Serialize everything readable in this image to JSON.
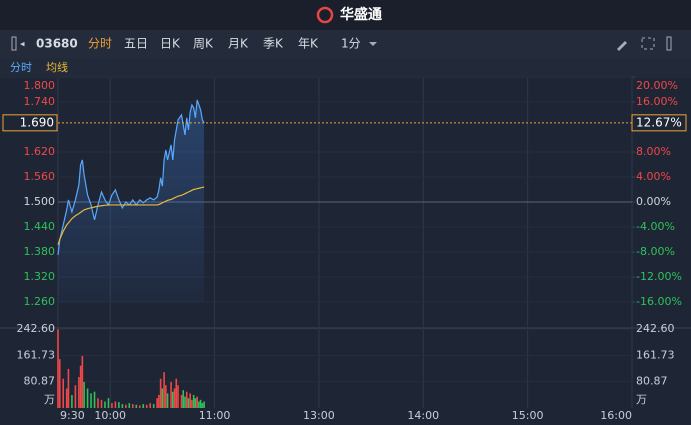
{
  "header": {
    "title": "华盛通"
  },
  "toolbar": {
    "code": "03680",
    "tabs": [
      "分时",
      "五日",
      "日K",
      "周K",
      "月K",
      "季K",
      "年K",
      "1分"
    ]
  },
  "chart_data": [
    {
      "type": "line",
      "x": [
        0,
        1,
        3,
        5,
        6,
        8,
        10,
        12,
        13,
        14,
        15,
        17,
        19,
        21,
        23,
        25,
        27,
        29,
        31,
        33,
        35,
        37,
        39,
        41,
        43,
        45,
        47,
        49,
        51,
        53,
        55,
        57,
        58,
        59,
        60,
        61,
        62,
        63,
        65,
        66,
        67,
        68,
        69,
        71,
        72,
        73,
        74,
        75,
        76,
        77,
        78,
        79,
        80,
        81,
        82,
        83,
        84
      ],
      "xlim": [
        0,
        330
      ],
      "xticks": [
        {
          "value": 0,
          "label": "9:30"
        },
        {
          "value": 30,
          "label": "10:00"
        },
        {
          "value": 90,
          "label": "11:00"
        },
        {
          "value": 150,
          "label": "13:00"
        },
        {
          "value": 210,
          "label": "14:00"
        },
        {
          "value": 270,
          "label": "15:00"
        },
        {
          "value": 330,
          "label": "16:00"
        }
      ],
      "ylim": [
        1.26,
        1.8
      ],
      "yticks": [
        {
          "value": 1.8,
          "label": "1.800"
        },
        {
          "value": 1.74,
          "label": "1.740"
        },
        {
          "value": 1.62,
          "label": "1.620"
        },
        {
          "value": 1.56,
          "label": "1.560"
        },
        {
          "value": 1.5,
          "label": "1.500"
        },
        {
          "value": 1.44,
          "label": "1.440"
        },
        {
          "value": 1.38,
          "label": "1.380"
        },
        {
          "value": 1.32,
          "label": "1.320"
        },
        {
          "value": 1.26,
          "label": "1.260"
        }
      ],
      "y2lim": [
        -16,
        20
      ],
      "y2ticks": [
        {
          "value": 20,
          "label": "20.00%"
        },
        {
          "value": 16,
          "label": "16.00%"
        },
        {
          "value": 8,
          "label": "8.00%"
        },
        {
          "value": 4,
          "label": "4.00%"
        },
        {
          "value": 0,
          "label": "0.00%"
        },
        {
          "value": -4,
          "label": "-4.00%"
        },
        {
          "value": -8,
          "label": "-8.00%"
        },
        {
          "value": -12,
          "label": "-12.00%"
        },
        {
          "value": -16,
          "label": "-16.00%"
        }
      ],
      "last_price": {
        "value": 1.69,
        "label": "1.690"
      },
      "last_change": {
        "value": 12.67,
        "label": "12.67%"
      },
      "series": [
        {
          "name": "分时",
          "color": "#5aa9ff",
          "values": [
            1.373,
            1.409,
            1.445,
            1.481,
            1.505,
            1.476,
            1.505,
            1.541,
            1.589,
            1.601,
            1.565,
            1.517,
            1.493,
            1.457,
            1.493,
            1.524,
            1.505,
            1.493,
            1.517,
            1.529,
            1.505,
            1.486,
            1.5,
            1.493,
            1.505,
            1.493,
            1.505,
            1.498,
            1.505,
            1.51,
            1.505,
            1.512,
            1.529,
            1.558,
            1.538,
            1.601,
            1.625,
            1.601,
            1.637,
            1.601,
            1.649,
            1.673,
            1.697,
            1.709,
            1.685,
            1.661,
            1.702,
            1.673,
            1.716,
            1.733,
            1.726,
            1.702,
            1.745,
            1.733,
            1.721,
            1.697,
            1.69
          ]
        },
        {
          "name": "均线",
          "color": "#e8b93a",
          "values": [
            1.397,
            1.41,
            1.43,
            1.445,
            1.45,
            1.46,
            1.467,
            1.472,
            1.475,
            1.478,
            1.481,
            1.484,
            1.486,
            1.488,
            1.49,
            1.491,
            1.492,
            1.493,
            1.493,
            1.493,
            1.493,
            1.493,
            1.493,
            1.493,
            1.493,
            1.493,
            1.493,
            1.493,
            1.493,
            1.493,
            1.493,
            1.493,
            1.494,
            1.496,
            1.498,
            1.5,
            1.502,
            1.504,
            1.506,
            1.508,
            1.51,
            1.512,
            1.514,
            1.516,
            1.518,
            1.52,
            1.522,
            1.524,
            1.526,
            1.528,
            1.53,
            1.531,
            1.532,
            1.533,
            1.534,
            1.535,
            1.536
          ]
        }
      ]
    },
    {
      "type": "bar",
      "x": [
        0,
        1,
        3,
        5,
        6,
        8,
        10,
        12,
        13,
        14,
        15,
        17,
        19,
        21,
        23,
        25,
        27,
        29,
        31,
        33,
        35,
        37,
        39,
        41,
        43,
        45,
        47,
        49,
        51,
        53,
        55,
        57,
        58,
        59,
        60,
        61,
        62,
        63,
        65,
        66,
        67,
        68,
        69,
        71,
        72,
        73,
        74,
        75,
        76,
        77,
        78,
        79,
        80,
        81,
        82,
        83,
        84
      ],
      "xlim": [
        0,
        330
      ],
      "ylim": [
        0,
        242.6
      ],
      "yticks": [
        {
          "value": 242.6,
          "label": "242.60"
        },
        161.73,
        80.87
      ],
      "y_unit": "万",
      "values": [
        242,
        150,
        90,
        60,
        120,
        40,
        70,
        95,
        130,
        160,
        80,
        60,
        45,
        50,
        30,
        25,
        20,
        30,
        15,
        20,
        18,
        12,
        10,
        15,
        12,
        10,
        8,
        12,
        10,
        15,
        12,
        30,
        40,
        90,
        60,
        110,
        70,
        45,
        80,
        50,
        60,
        90,
        70,
        40,
        55,
        35,
        50,
        30,
        45,
        25,
        40,
        30,
        35,
        20,
        25,
        15,
        20
      ],
      "colors": [
        "#f04848",
        "#f04848",
        "#f04848",
        "#f04848",
        "#f04848",
        "#2fc15a",
        "#f04848",
        "#f04848",
        "#f04848",
        "#f04848",
        "#2fc15a",
        "#2fc15a",
        "#2fc15a",
        "#2fc15a",
        "#f04848",
        "#f04848",
        "#2fc15a",
        "#2fc15a",
        "#f04848",
        "#f04848",
        "#2fc15a",
        "#2fc15a",
        "#f04848",
        "#2fc15a",
        "#f04848",
        "#2fc15a",
        "#f04848",
        "#2fc15a",
        "#f04848",
        "#f04848",
        "#2fc15a",
        "#f04848",
        "#f04848",
        "#f04848",
        "#2fc15a",
        "#f04848",
        "#f04848",
        "#2fc15a",
        "#f04848",
        "#2fc15a",
        "#f04848",
        "#f04848",
        "#f04848",
        "#f04848",
        "#2fc15a",
        "#2fc15a",
        "#f04848",
        "#2fc15a",
        "#f04848",
        "#f04848",
        "#2fc15a",
        "#2fc15a",
        "#f04848",
        "#2fc15a",
        "#2fc15a",
        "#2fc15a",
        "#2fc15a"
      ]
    }
  ]
}
